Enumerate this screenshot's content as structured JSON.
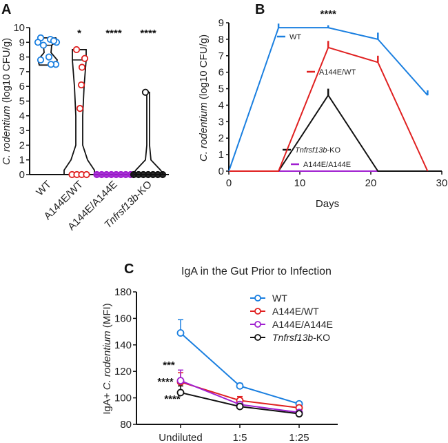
{
  "chart_data": [
    {
      "panel": "A",
      "type": "violin-scatter",
      "ylabel_italic": "C. rodentium",
      "ylabel_rest": " (log10 CFU/g)",
      "ylim": [
        0,
        10
      ],
      "yticks": [
        0,
        1,
        2,
        3,
        4,
        5,
        6,
        7,
        8,
        9,
        10
      ],
      "categories": [
        "WT",
        "A144E/WT",
        "A144E/A144E",
        "Tnfrsf13b-KO"
      ],
      "colors": [
        "#1a7fe0",
        "#e02020",
        "#a020d0",
        "#111111"
      ],
      "significance": [
        "",
        "*",
        "****",
        "****"
      ],
      "medians": [
        8.8,
        7.8,
        0,
        0
      ],
      "values": [
        [
          9.3,
          9.2,
          9.0,
          9.0,
          8.8,
          8.0,
          7.8,
          7.5,
          7.5,
          9.1
        ],
        [
          8.5,
          7.9,
          7.3,
          6.1,
          4.5,
          0,
          0,
          0,
          0
        ],
        [
          0,
          0,
          0,
          0,
          0,
          0,
          0,
          0
        ],
        [
          5.6,
          0,
          0,
          0,
          0,
          0,
          0,
          0
        ]
      ]
    },
    {
      "panel": "B",
      "type": "line",
      "xlabel": "Days",
      "ylabel_italic": "C. rodentium",
      "ylabel_rest": " (log10 CFU/g)",
      "xlim": [
        0,
        30
      ],
      "ylim": [
        0,
        9
      ],
      "xticks": [
        0,
        10,
        20,
        30
      ],
      "yticks": [
        0,
        1,
        2,
        3,
        4,
        5,
        6,
        7,
        8,
        9
      ],
      "x": [
        0,
        7,
        14,
        21,
        28
      ],
      "significance": "****",
      "legend": "inline",
      "series": [
        {
          "name": "WT",
          "color": "#1a7fe0",
          "values": [
            0,
            8.7,
            8.7,
            8.0,
            4.6
          ],
          "errors": [
            0,
            0.25,
            0.15,
            0.4,
            0.3
          ]
        },
        {
          "name": "A144E/WT",
          "color": "#e02020",
          "values": [
            0,
            0,
            7.5,
            6.6,
            0
          ],
          "errors": [
            0,
            0,
            0.4,
            0.4,
            0
          ]
        },
        {
          "name": "Tnfrsf13b-KO",
          "color": "#111111",
          "values": [
            0,
            0,
            4.6,
            0,
            0
          ],
          "errors": [
            0,
            0,
            0.4,
            0,
            0
          ]
        },
        {
          "name": "A144E/A144E",
          "color": "#a020d0",
          "values": [
            0,
            0,
            0,
            0,
            0
          ],
          "errors": [
            0,
            0,
            0,
            0,
            0
          ]
        }
      ]
    },
    {
      "panel": "C",
      "type": "line",
      "title": "IgA in the Gut Prior to Infection",
      "ylabel_prefix": "IgA+ ",
      "ylabel_italic": "C. rodentium",
      "ylabel_rest": " (MFI)",
      "ylim": [
        80,
        180
      ],
      "yticks": [
        80,
        100,
        120,
        140,
        160,
        180
      ],
      "categories": [
        "Undiluted",
        "1:5",
        "1:25"
      ],
      "legend": "top-right",
      "significance": [
        "***",
        "****",
        "****"
      ],
      "series": [
        {
          "name": "WT",
          "color": "#1a7fe0",
          "values": [
            149,
            109,
            95.5
          ],
          "errors": [
            10,
            2,
            1.5
          ]
        },
        {
          "name": "A144E/WT",
          "color": "#e02020",
          "values": [
            112,
            98,
            92.5
          ],
          "errors": [
            7,
            3,
            1
          ]
        },
        {
          "name": "A144E/A144E",
          "color": "#a020d0",
          "values": [
            113,
            95,
            89
          ],
          "errors": [
            8,
            1,
            1
          ]
        },
        {
          "name": "Tnfrsf13b-KO",
          "color": "#111111",
          "values": [
            104,
            93.5,
            88
          ],
          "errors": [
            5,
            1,
            1
          ]
        }
      ]
    }
  ]
}
